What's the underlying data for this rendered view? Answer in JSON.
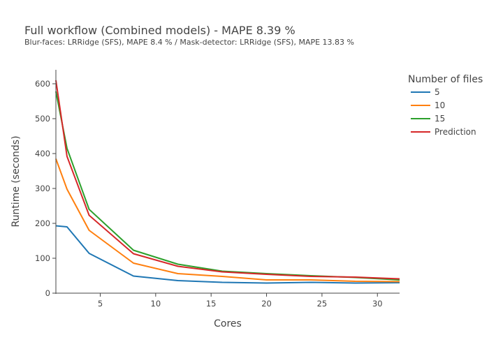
{
  "chart_data": {
    "type": "line",
    "title": "Full workflow (Combined models) - MAPE 8.39 %",
    "subtitle": "Blur-faces: LRRidge (SFS), MAPE 8.4 % / Mask-detector: LRRidge (SFS), MAPE 13.83 %",
    "xlabel": "Cores",
    "ylabel": "Runtime (seconds)",
    "xlim": [
      1,
      32
    ],
    "ylim": [
      0,
      640
    ],
    "xticks": [
      5,
      10,
      15,
      20,
      25,
      30
    ],
    "yticks": [
      0,
      100,
      200,
      300,
      400,
      500,
      600
    ],
    "x": [
      1,
      2,
      4,
      8,
      12,
      16,
      20,
      24,
      28,
      32
    ],
    "legend_title": "Number of files",
    "legend_position": "top-right",
    "grid": false,
    "series": [
      {
        "name": "5",
        "color": "#1f77b4",
        "values": [
          193,
          190,
          114,
          49,
          36,
          31,
          29,
          31,
          29,
          30
        ]
      },
      {
        "name": "10",
        "color": "#ff7f0e",
        "values": [
          385,
          298,
          180,
          86,
          56,
          48,
          38,
          38,
          34,
          33
        ]
      },
      {
        "name": "15",
        "color": "#2ca02c",
        "values": [
          578,
          415,
          240,
          123,
          83,
          63,
          56,
          50,
          45,
          38
        ]
      },
      {
        "name": "Prediction",
        "color": "#d62728",
        "values": [
          610,
          392,
          223,
          113,
          77,
          61,
          54,
          48,
          46,
          41
        ]
      }
    ]
  }
}
